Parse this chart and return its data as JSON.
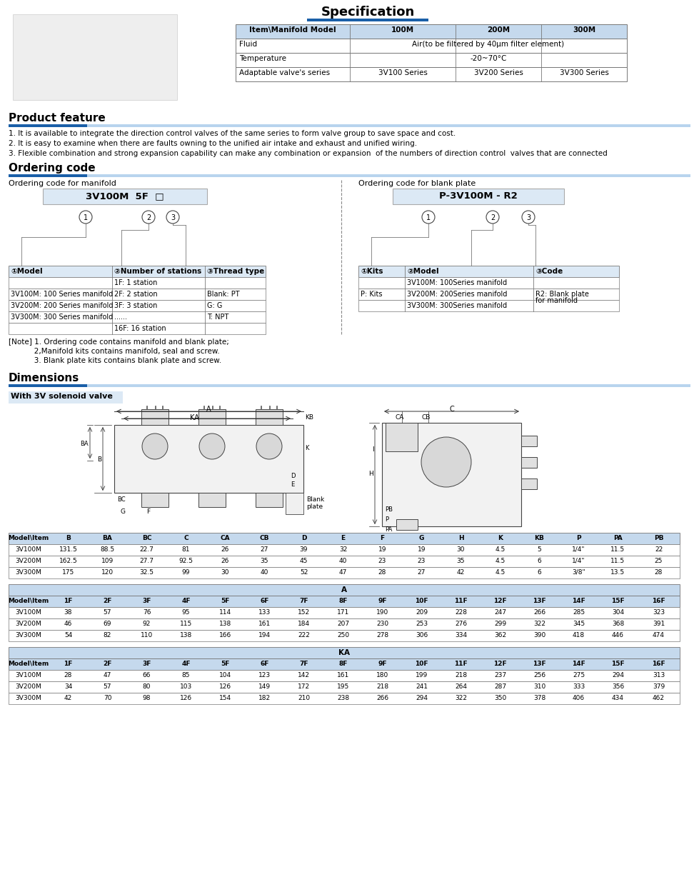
{
  "spec_title": "Specification",
  "spec_headers": [
    "Item\\Manifold Model",
    "100M",
    "200M",
    "300M"
  ],
  "spec_rows": [
    [
      "Fluid",
      "Air(to be filtered by 40μm filter element)",
      "",
      ""
    ],
    [
      "Temperature",
      "-20~70°C",
      "",
      ""
    ],
    [
      "Adaptable valve's series",
      "3V100 Series",
      "3V200 Series",
      "3V300 Series"
    ]
  ],
  "product_feature_title": "Product feature",
  "product_features": [
    "1. It is available to integrate the direction control valves of the same series to form valve group to save space and cost.",
    "2. It is easy to examine when there are faults owning to the unified air intake and exhaust and unified wiring.",
    "3. Flexible combination and strong expansion capability can make any combination or expansion  of the numbers of direction control  valves that are connected"
  ],
  "ordering_code_title": "Ordering code",
  "ordering_manifold_title": "Ordering code for manifold",
  "ordering_blank_title": "Ordering code for blank plate",
  "manifold_code": "3V100M  5F  □",
  "blank_code": "P-3V100M - R2",
  "manifold_table_headers": [
    "①Model",
    "②Number of stations",
    "③Thread type"
  ],
  "manifold_table_rows": [
    [
      "",
      "1F: 1 station",
      ""
    ],
    [
      "3V100M: 100 Series manifold",
      "2F: 2 station",
      "Blank: PT"
    ],
    [
      "3V200M: 200 Series manifold",
      "3F: 3 station",
      "G: G"
    ],
    [
      "3V300M: 300 Series manifold",
      "......",
      "T: NPT"
    ],
    [
      "",
      "16F: 16 station",
      ""
    ]
  ],
  "blank_table_headers": [
    "①Kits",
    "②Model",
    "③Code"
  ],
  "blank_table_rows": [
    [
      "",
      "3V100M: 100Series manifold",
      ""
    ],
    [
      "P: Kits",
      "3V200M: 200Series manifold",
      "R2: Blank plate\nfor manifold"
    ],
    [
      "",
      "3V300M: 300Series manifold",
      ""
    ]
  ],
  "note_lines": [
    "[Note] 1. Ordering code contains manifold and blank plate;",
    "           2,Manifold kits contains manifold, seal and screw.",
    "           3. Blank plate kits contains blank plate and screw."
  ],
  "dimensions_title": "Dimensions",
  "dimensions_subtitle": "With 3V solenoid valve",
  "dim_table1_headers": [
    "Model\\Item",
    "B",
    "BA",
    "BC",
    "C",
    "CA",
    "CB",
    "D",
    "E",
    "F",
    "G",
    "H",
    "K",
    "KB",
    "P",
    "PA",
    "PB"
  ],
  "dim_table1_rows": [
    [
      "3V100M",
      "131.5",
      "88.5",
      "22.7",
      "81",
      "26",
      "27",
      "39",
      "32",
      "19",
      "19",
      "30",
      "4.5",
      "5",
      "1/4\"",
      "11.5",
      "22"
    ],
    [
      "3V200M",
      "162.5",
      "109",
      "27.7",
      "92.5",
      "26",
      "35",
      "45",
      "40",
      "23",
      "23",
      "35",
      "4.5",
      "6",
      "1/4\"",
      "11.5",
      "25"
    ],
    [
      "3V300M",
      "175",
      "120",
      "32.5",
      "99",
      "30",
      "40",
      "52",
      "47",
      "28",
      "27",
      "42",
      "4.5",
      "6",
      "3/8\"",
      "13.5",
      "28"
    ]
  ],
  "dim_table2_label": "A",
  "dim_table2_headers": [
    "Model\\Item",
    "1F",
    "2F",
    "3F",
    "4F",
    "5F",
    "6F",
    "7F",
    "8F",
    "9F",
    "10F",
    "11F",
    "12F",
    "13F",
    "14F",
    "15F",
    "16F"
  ],
  "dim_table2_rows": [
    [
      "3V100M",
      "38",
      "57",
      "76",
      "95",
      "114",
      "133",
      "152",
      "171",
      "190",
      "209",
      "228",
      "247",
      "266",
      "285",
      "304",
      "323"
    ],
    [
      "3V200M",
      "46",
      "69",
      "92",
      "115",
      "138",
      "161",
      "184",
      "207",
      "230",
      "253",
      "276",
      "299",
      "322",
      "345",
      "368",
      "391"
    ],
    [
      "3V300M",
      "54",
      "82",
      "110",
      "138",
      "166",
      "194",
      "222",
      "250",
      "278",
      "306",
      "334",
      "362",
      "390",
      "418",
      "446",
      "474"
    ]
  ],
  "dim_table3_label": "KA",
  "dim_table3_headers": [
    "Model\\Item",
    "1F",
    "2F",
    "3F",
    "4F",
    "5F",
    "6F",
    "7F",
    "8F",
    "9F",
    "10F",
    "11F",
    "12F",
    "13F",
    "14F",
    "15F",
    "16F"
  ],
  "dim_table3_rows": [
    [
      "3V100M",
      "28",
      "47",
      "66",
      "85",
      "104",
      "123",
      "142",
      "161",
      "180",
      "199",
      "218",
      "237",
      "256",
      "275",
      "294",
      "313"
    ],
    [
      "3V200M",
      "34",
      "57",
      "80",
      "103",
      "126",
      "149",
      "172",
      "195",
      "218",
      "241",
      "264",
      "287",
      "310",
      "333",
      "356",
      "379"
    ],
    [
      "3V300M",
      "42",
      "70",
      "98",
      "126",
      "154",
      "182",
      "210",
      "238",
      "266",
      "294",
      "322",
      "350",
      "378",
      "406",
      "434",
      "462"
    ]
  ],
  "light_blue_bg": "#dce9f5",
  "header_row_color": "#c5d9ed",
  "table_border_color": "#777777",
  "section_bar_color": "#1a5fa8",
  "section_bar_light": "#b8d4ee",
  "bg_color": "#ffffff"
}
